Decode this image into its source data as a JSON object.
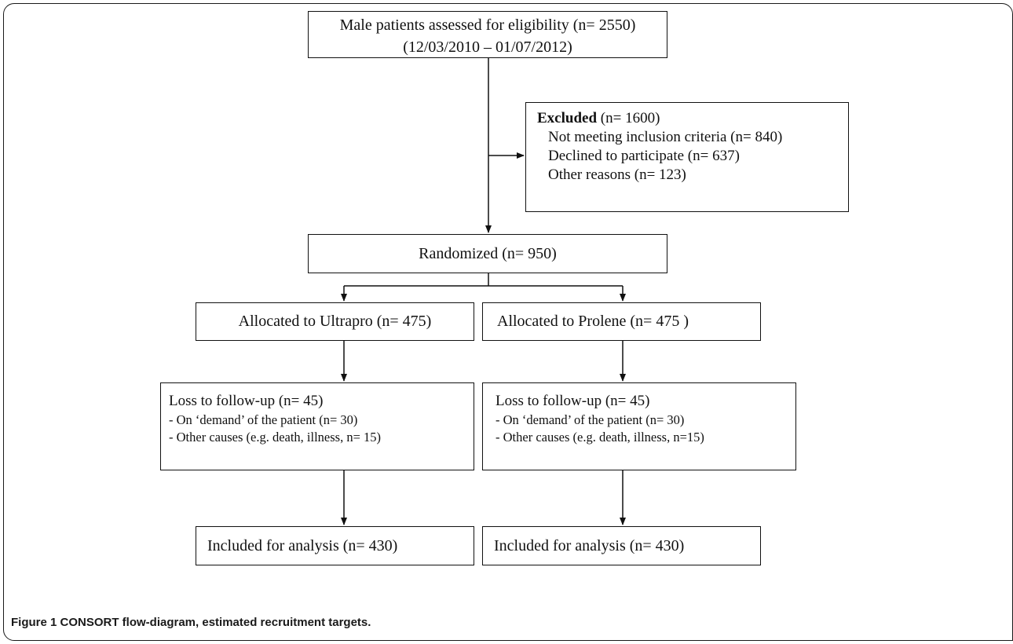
{
  "boxes": {
    "assessed": {
      "line1": "Male patients assessed for eligibility (n= 2550)",
      "line2": "(12/03/2010 – 01/07/2012)"
    },
    "excluded": {
      "title": "Excluded",
      "title_count": " (n= 1600)",
      "items": [
        "Not meeting inclusion criteria (n= 840)",
        "Declined to participate (n= 637)",
        "Other reasons (n= 123)"
      ]
    },
    "randomized": {
      "label": "Randomized (n= 950)"
    },
    "alloc_left": {
      "label": "Allocated to Ultrapro (n= 475)"
    },
    "alloc_right": {
      "label": "Allocated to Prolene (n= 475 )"
    },
    "loss_left": {
      "title": "Loss to follow-up (n= 45)",
      "items": [
        "- On ‘demand’ of the patient (n= 30)",
        "- Other causes (e.g. death, illness, n= 15)"
      ]
    },
    "loss_right": {
      "title": "Loss to follow-up (n= 45)",
      "items": [
        "- On ‘demand’ of the patient (n= 30)",
        "-  Other causes (e.g. death, illness, n=15)"
      ]
    },
    "analysis_left": {
      "label": "Included for analysis (n= 430)"
    },
    "analysis_right": {
      "label": "Included for analysis (n= 430)"
    }
  },
  "caption": {
    "text": "Figure 1 CONSORT flow-diagram, estimated recruitment targets."
  }
}
